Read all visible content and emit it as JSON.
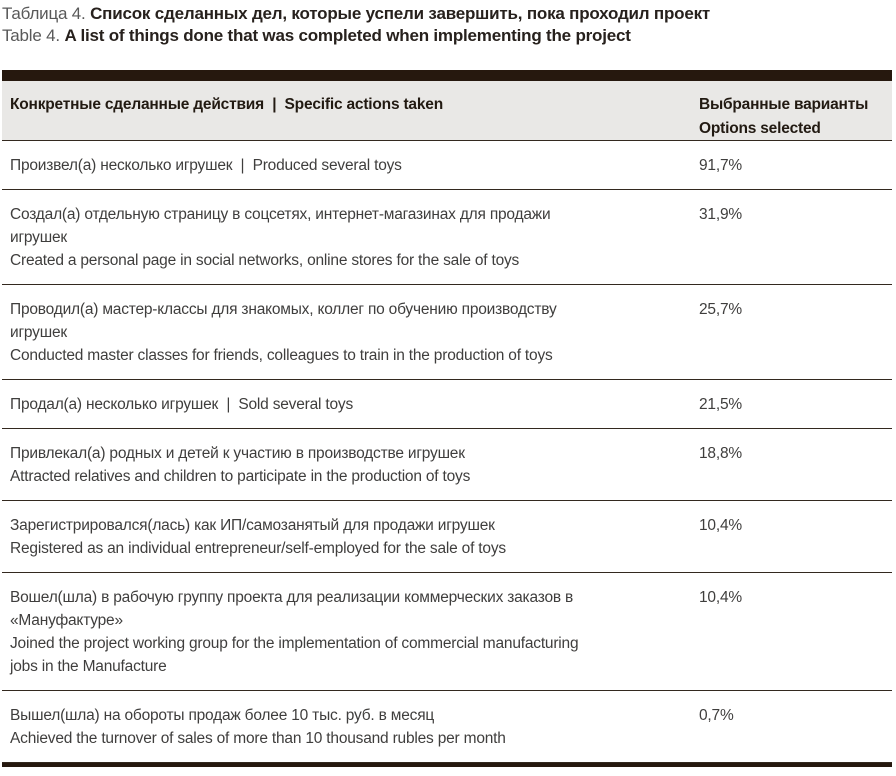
{
  "title": {
    "ru_label": "Таблица 4.",
    "ru_text": "Список сделанных дел, которые успели завершить, пока проходил проект",
    "en_label": "Table 4.",
    "en_text": "A list of things done that was completed when implementing the project"
  },
  "table": {
    "header": {
      "actions": "Конкретные сделанные действия  |  Specific actions taken",
      "options": "Выбранные варианты\nOptions selected"
    },
    "rows": [
      {
        "action": "Произвел(а) несколько игрушек  |  Produced several toys",
        "value": "91,7%"
      },
      {
        "action": "Создал(а) отдельную страницу в соцсетях, интернет-магазинах для продажи\nигрушек\nCreated a personal page in social networks, online stores for the sale of toys",
        "value": "31,9%"
      },
      {
        "action": "Проводил(а) мастер-классы для знакомых, коллег по обучению производству\nигрушек\nConducted master classes for friends, colleagues to train in the production of toys",
        "value": "25,7%"
      },
      {
        "action": "Продал(а) несколько игрушек  |  Sold several toys",
        "value": "21,5%"
      },
      {
        "action": "Привлекал(а) родных и детей к участию в производстве игрушек\nAttracted relatives and children to participate in the production of toys",
        "value": "18,8%"
      },
      {
        "action": "Зарегистрировался(лась) как ИП/самозанятый для продажи игрушек\nRegistered as an individual entrepreneur/self-employed for the sale of toys",
        "value": "10,4%"
      },
      {
        "action": "Вошел(шла) в рабочую группу проекта для реализации коммерческих заказов в\n«Мануфактуре»\nJoined the project working group for the implementation of commercial manufacturing\njobs in the Manufacture",
        "value": "10,4%"
      },
      {
        "action": "Вышел(шла) на обороты продаж более 10 тыс. руб. в месяц\nAchieved the turnover of sales of more than 10 thousand rubles per month",
        "value": "0,7%"
      }
    ]
  },
  "colors": {
    "accent_bar": "#26180e",
    "header_bg": "#e9e8e6",
    "separator": "#33291f",
    "body_text": "#3f3e3d",
    "caption_label": "#595959",
    "caption_text": "#27211d"
  }
}
